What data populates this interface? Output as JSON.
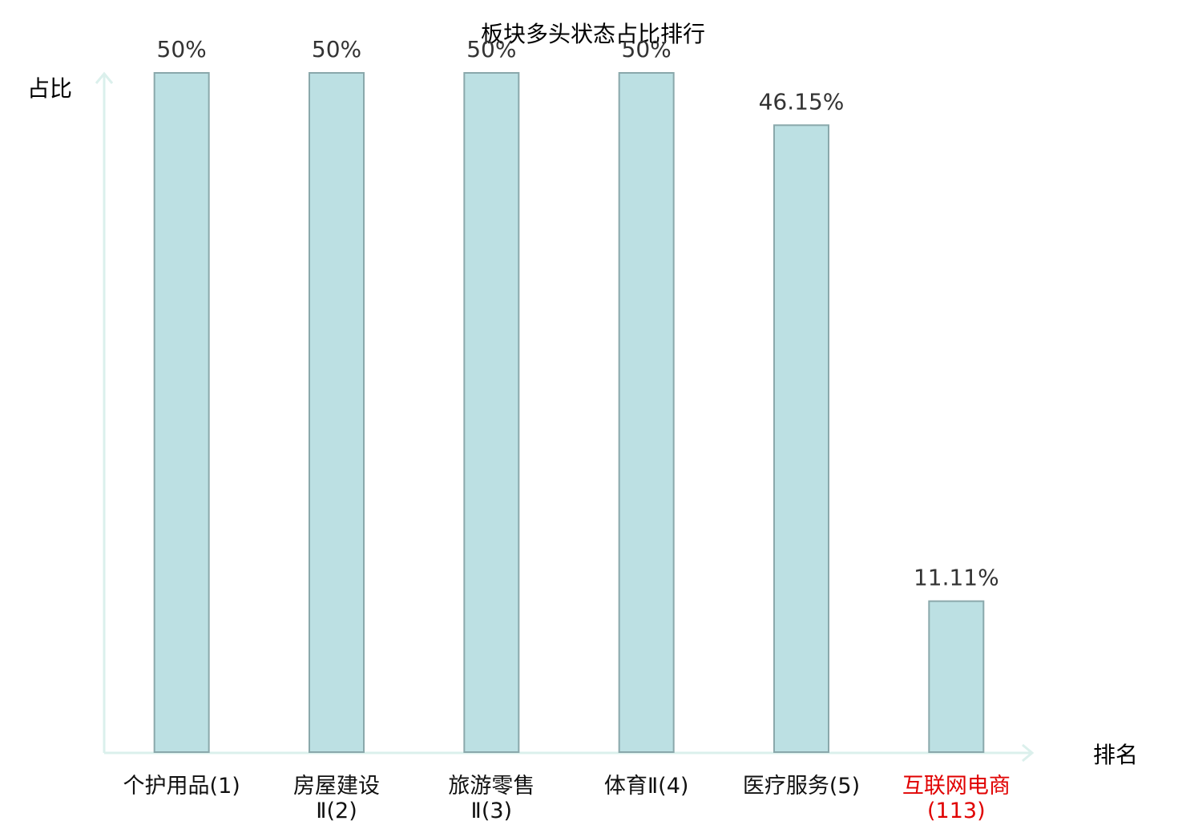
{
  "chart_data": {
    "type": "bar",
    "title": "板块多头状态占比排行",
    "y_label": "占比",
    "x_label": "排名",
    "categories": [
      "个护用品(1)",
      "房屋建设Ⅱ(2)",
      "旅游零售Ⅱ(3)",
      "体育Ⅱ(4)",
      "医疗服务(5)",
      "互联网电商(113)"
    ],
    "values": [
      50,
      50,
      50,
      50,
      46.15,
      11.11
    ],
    "value_labels": [
      "50%",
      "50%",
      "50%",
      "50%",
      "46.15%",
      "11.11%"
    ],
    "label_colors": [
      "#111111",
      "#111111",
      "#111111",
      "#111111",
      "#111111",
      "#e00000"
    ],
    "color": "#bce0e3",
    "edge_color": "#8aa8ab",
    "ylim": [
      0,
      50
    ]
  }
}
